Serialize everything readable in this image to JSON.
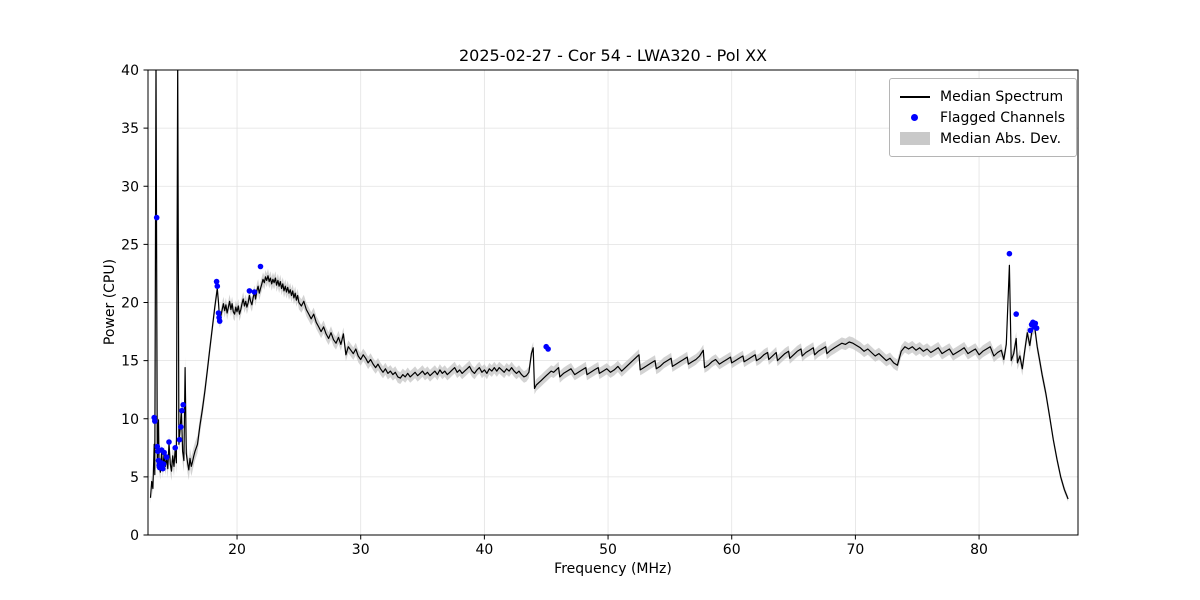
{
  "chart_data": {
    "type": "line",
    "title": "2025-02-27 - Cor 54 - LWA320 - Pol XX",
    "xlabel": "Frequency (MHz)",
    "ylabel": "Power (CPU)",
    "xlim": [
      12.8,
      88.0
    ],
    "ylim": [
      0,
      40
    ],
    "xticks": [
      20,
      30,
      40,
      50,
      60,
      70,
      80
    ],
    "yticks": [
      0,
      5,
      10,
      15,
      20,
      25,
      30,
      35,
      40
    ],
    "grid": true,
    "colors": {
      "line": "#000000",
      "flagged": "#0000ff",
      "band": "#c8c8c8",
      "grid": "#e2e2e2",
      "spine": "#000000"
    },
    "legend": {
      "position": "upper right",
      "entries": [
        {
          "label": "Median Spectrum",
          "type": "line"
        },
        {
          "label": "Flagged Channels",
          "type": "scatter"
        },
        {
          "label": "Median Abs. Dev.",
          "type": "band"
        }
      ]
    },
    "median_spectrum": [
      [
        13.0,
        3.2
      ],
      [
        13.1,
        4.6
      ],
      [
        13.2,
        4.0
      ],
      [
        13.3,
        7.8
      ],
      [
        13.35,
        5.2
      ],
      [
        13.45,
        41
      ],
      [
        13.55,
        5.8
      ],
      [
        13.65,
        9.9
      ],
      [
        13.7,
        6.0
      ],
      [
        13.8,
        5.4
      ],
      [
        13.9,
        7.2
      ],
      [
        14.0,
        5.6
      ],
      [
        14.1,
        7.0
      ],
      [
        14.2,
        5.9
      ],
      [
        14.3,
        6.6
      ],
      [
        14.4,
        5.7
      ],
      [
        14.5,
        7.9
      ],
      [
        14.6,
        6.1
      ],
      [
        14.7,
        5.5
      ],
      [
        14.8,
        6.8
      ],
      [
        14.9,
        5.9
      ],
      [
        15.0,
        7.4
      ],
      [
        15.1,
        6.2
      ],
      [
        15.2,
        41
      ],
      [
        15.3,
        7.8
      ],
      [
        15.4,
        9.2
      ],
      [
        15.5,
        10.8
      ],
      [
        15.6,
        7.2
      ],
      [
        15.7,
        6.4
      ],
      [
        15.8,
        14.4
      ],
      [
        15.9,
        7.0
      ],
      [
        16.0,
        6.2
      ],
      [
        16.1,
        5.6
      ],
      [
        16.2,
        6.6
      ],
      [
        16.3,
        5.9
      ],
      [
        16.4,
        6.3
      ],
      [
        16.5,
        6.8
      ],
      [
        16.6,
        7.2
      ],
      [
        16.8,
        7.8
      ],
      [
        17.0,
        9.4
      ],
      [
        17.2,
        10.8
      ],
      [
        17.4,
        12.4
      ],
      [
        17.6,
        14.2
      ],
      [
        17.8,
        16.0
      ],
      [
        18.0,
        17.8
      ],
      [
        18.2,
        19.6
      ],
      [
        18.4,
        21.2
      ],
      [
        18.5,
        20.0
      ],
      [
        18.6,
        18.4
      ],
      [
        18.7,
        18.9
      ],
      [
        18.8,
        19.4
      ],
      [
        18.9,
        19.9
      ],
      [
        19.0,
        19.3
      ],
      [
        19.1,
        19.8
      ],
      [
        19.2,
        19.1
      ],
      [
        19.3,
        19.6
      ],
      [
        19.4,
        20.1
      ],
      [
        19.5,
        19.4
      ],
      [
        19.6,
        19.9
      ],
      [
        19.7,
        19.2
      ],
      [
        19.8,
        19.0
      ],
      [
        19.9,
        19.6
      ],
      [
        20.0,
        19.2
      ],
      [
        20.1,
        19.7
      ],
      [
        20.2,
        19.0
      ],
      [
        20.3,
        19.4
      ],
      [
        20.4,
        19.9
      ],
      [
        20.5,
        20.3
      ],
      [
        20.6,
        19.7
      ],
      [
        20.7,
        20.1
      ],
      [
        20.8,
        19.6
      ],
      [
        20.9,
        20.0
      ],
      [
        21.0,
        20.6
      ],
      [
        21.1,
        20.1
      ],
      [
        21.2,
        19.8
      ],
      [
        21.3,
        20.4
      ],
      [
        21.4,
        20.9
      ],
      [
        21.5,
        20.3
      ],
      [
        21.6,
        21.0
      ],
      [
        21.7,
        21.4
      ],
      [
        21.8,
        20.8
      ],
      [
        21.9,
        21.2
      ],
      [
        22.0,
        21.6
      ],
      [
        22.1,
        22.0
      ],
      [
        22.2,
        21.7
      ],
      [
        22.3,
        22.2
      ],
      [
        22.4,
        21.9
      ],
      [
        22.5,
        22.3
      ],
      [
        22.6,
        21.8
      ],
      [
        22.7,
        22.1
      ],
      [
        22.8,
        21.6
      ],
      [
        22.9,
        22.0
      ],
      [
        23.0,
        21.7
      ],
      [
        23.1,
        22.1
      ],
      [
        23.2,
        21.5
      ],
      [
        23.3,
        21.9
      ],
      [
        23.4,
        21.4
      ],
      [
        23.5,
        21.8
      ],
      [
        23.6,
        21.2
      ],
      [
        23.7,
        21.6
      ],
      [
        23.8,
        21.0
      ],
      [
        23.9,
        21.4
      ],
      [
        24.0,
        20.9
      ],
      [
        24.1,
        21.3
      ],
      [
        24.2,
        20.8
      ],
      [
        24.3,
        21.1
      ],
      [
        24.4,
        20.6
      ],
      [
        24.5,
        21.0
      ],
      [
        24.6,
        20.4
      ],
      [
        24.7,
        20.8
      ],
      [
        24.8,
        20.2
      ],
      [
        24.9,
        20.6
      ],
      [
        25.0,
        20.0
      ],
      [
        25.2,
        19.7
      ],
      [
        25.4,
        20.1
      ],
      [
        25.6,
        19.4
      ],
      [
        25.8,
        19.0
      ],
      [
        26.0,
        18.6
      ],
      [
        26.2,
        19.0
      ],
      [
        26.4,
        18.3
      ],
      [
        26.6,
        17.9
      ],
      [
        26.8,
        17.5
      ],
      [
        27.0,
        17.9
      ],
      [
        27.2,
        17.3
      ],
      [
        27.4,
        16.9
      ],
      [
        27.6,
        17.4
      ],
      [
        27.8,
        16.8
      ],
      [
        28.0,
        16.5
      ],
      [
        28.2,
        17.0
      ],
      [
        28.4,
        16.4
      ],
      [
        28.6,
        17.3
      ],
      [
        28.8,
        15.5
      ],
      [
        29.0,
        16.2
      ],
      [
        29.2,
        15.9
      ],
      [
        29.4,
        15.6
      ],
      [
        29.6,
        16.0
      ],
      [
        29.8,
        15.4
      ],
      [
        30.0,
        15.1
      ],
      [
        30.2,
        15.5
      ],
      [
        30.4,
        15.2
      ],
      [
        30.6,
        14.8
      ],
      [
        30.8,
        15.1
      ],
      [
        31.0,
        14.7
      ],
      [
        31.2,
        14.4
      ],
      [
        31.4,
        14.7
      ],
      [
        31.6,
        14.3
      ],
      [
        31.8,
        14.0
      ],
      [
        32.0,
        14.3
      ],
      [
        32.2,
        13.9
      ],
      [
        32.4,
        14.1
      ],
      [
        32.6,
        13.8
      ],
      [
        32.8,
        14.0
      ],
      [
        33.0,
        13.6
      ],
      [
        33.2,
        13.5
      ],
      [
        33.4,
        13.8
      ],
      [
        33.6,
        13.6
      ],
      [
        33.8,
        13.9
      ],
      [
        34.0,
        13.6
      ],
      [
        34.2,
        13.8
      ],
      [
        34.4,
        14.0
      ],
      [
        34.6,
        13.7
      ],
      [
        34.8,
        13.9
      ],
      [
        35.0,
        14.1
      ],
      [
        35.2,
        13.8
      ],
      [
        35.4,
        14.0
      ],
      [
        35.6,
        13.7
      ],
      [
        35.8,
        13.9
      ],
      [
        36.0,
        14.1
      ],
      [
        36.2,
        13.8
      ],
      [
        36.4,
        14.2
      ],
      [
        36.6,
        13.9
      ],
      [
        36.8,
        14.1
      ],
      [
        37.0,
        13.8
      ],
      [
        37.2,
        14.0
      ],
      [
        37.4,
        14.2
      ],
      [
        37.6,
        14.4
      ],
      [
        37.8,
        14.0
      ],
      [
        38.0,
        14.2
      ],
      [
        38.2,
        13.9
      ],
      [
        38.4,
        14.1
      ],
      [
        38.6,
        14.3
      ],
      [
        38.8,
        14.5
      ],
      [
        39.0,
        14.1
      ],
      [
        39.2,
        13.9
      ],
      [
        39.4,
        14.2
      ],
      [
        39.6,
        14.4
      ],
      [
        39.8,
        14.0
      ],
      [
        40.0,
        14.2
      ],
      [
        40.2,
        13.9
      ],
      [
        40.4,
        14.3
      ],
      [
        40.6,
        14.1
      ],
      [
        40.8,
        14.4
      ],
      [
        41.0,
        14.1
      ],
      [
        41.2,
        14.4
      ],
      [
        41.4,
        14.2
      ],
      [
        41.6,
        14.0
      ],
      [
        41.8,
        14.3
      ],
      [
        42.0,
        14.1
      ],
      [
        42.2,
        14.4
      ],
      [
        42.4,
        14.1
      ],
      [
        42.6,
        13.9
      ],
      [
        42.8,
        14.1
      ],
      [
        43.0,
        13.8
      ],
      [
        43.2,
        13.6
      ],
      [
        43.4,
        13.7
      ],
      [
        43.6,
        14.0
      ],
      [
        43.8,
        15.6
      ],
      [
        43.95,
        16.1
      ],
      [
        44.05,
        12.6
      ],
      [
        44.2,
        12.9
      ],
      [
        44.4,
        13.1
      ],
      [
        44.6,
        13.3
      ],
      [
        44.8,
        13.5
      ],
      [
        45.0,
        13.7
      ],
      [
        45.2,
        13.9
      ],
      [
        45.4,
        14.1
      ],
      [
        45.6,
        14.0
      ],
      [
        45.8,
        14.2
      ],
      [
        46.0,
        14.4
      ],
      [
        46.1,
        13.6
      ],
      [
        46.4,
        13.9
      ],
      [
        46.7,
        14.1
      ],
      [
        47.0,
        14.3
      ],
      [
        47.3,
        13.8
      ],
      [
        47.6,
        14.0
      ],
      [
        47.9,
        14.2
      ],
      [
        48.2,
        14.4
      ],
      [
        48.3,
        13.8
      ],
      [
        48.6,
        14.0
      ],
      [
        48.9,
        14.2
      ],
      [
        49.2,
        14.4
      ],
      [
        49.3,
        13.9
      ],
      [
        49.6,
        14.1
      ],
      [
        49.9,
        14.3
      ],
      [
        50.2,
        14.0
      ],
      [
        50.5,
        14.2
      ],
      [
        50.8,
        14.5
      ],
      [
        51.1,
        14.1
      ],
      [
        51.4,
        14.4
      ],
      [
        51.7,
        14.7
      ],
      [
        52.0,
        15.0
      ],
      [
        52.3,
        15.3
      ],
      [
        52.5,
        15.5
      ],
      [
        52.6,
        14.2
      ],
      [
        52.9,
        14.4
      ],
      [
        53.2,
        14.6
      ],
      [
        53.5,
        14.8
      ],
      [
        53.8,
        15.0
      ],
      [
        53.9,
        14.3
      ],
      [
        54.2,
        14.5
      ],
      [
        54.5,
        14.8
      ],
      [
        54.8,
        15.0
      ],
      [
        55.1,
        15.2
      ],
      [
        55.2,
        14.5
      ],
      [
        55.5,
        14.7
      ],
      [
        55.8,
        14.9
      ],
      [
        56.1,
        15.1
      ],
      [
        56.4,
        15.3
      ],
      [
        56.5,
        14.7
      ],
      [
        56.8,
        14.9
      ],
      [
        57.1,
        15.1
      ],
      [
        57.4,
        15.4
      ],
      [
        57.7,
        15.9
      ],
      [
        57.8,
        14.4
      ],
      [
        58.1,
        14.6
      ],
      [
        58.4,
        14.9
      ],
      [
        58.7,
        15.1
      ],
      [
        59.0,
        14.7
      ],
      [
        59.3,
        14.9
      ],
      [
        59.6,
        15.1
      ],
      [
        59.9,
        15.3
      ],
      [
        60.0,
        14.8
      ],
      [
        60.3,
        15.0
      ],
      [
        60.6,
        15.2
      ],
      [
        60.9,
        15.4
      ],
      [
        61.0,
        14.9
      ],
      [
        61.3,
        15.1
      ],
      [
        61.6,
        15.3
      ],
      [
        61.9,
        15.5
      ],
      [
        62.0,
        15.0
      ],
      [
        62.3,
        15.2
      ],
      [
        62.6,
        15.5
      ],
      [
        62.9,
        15.7
      ],
      [
        63.0,
        15.1
      ],
      [
        63.3,
        15.4
      ],
      [
        63.6,
        15.7
      ],
      [
        63.7,
        15.0
      ],
      [
        64.0,
        15.3
      ],
      [
        64.3,
        15.6
      ],
      [
        64.6,
        15.8
      ],
      [
        64.7,
        15.2
      ],
      [
        65.0,
        15.5
      ],
      [
        65.3,
        15.8
      ],
      [
        65.6,
        16.0
      ],
      [
        65.7,
        15.4
      ],
      [
        66.0,
        15.7
      ],
      [
        66.3,
        15.9
      ],
      [
        66.6,
        16.1
      ],
      [
        66.7,
        15.5
      ],
      [
        67.0,
        15.8
      ],
      [
        67.3,
        16.0
      ],
      [
        67.6,
        16.2
      ],
      [
        67.7,
        15.6
      ],
      [
        68.0,
        15.9
      ],
      [
        68.3,
        16.1
      ],
      [
        68.6,
        16.3
      ],
      [
        68.9,
        16.5
      ],
      [
        69.2,
        16.4
      ],
      [
        69.5,
        16.6
      ],
      [
        69.8,
        16.5
      ],
      [
        70.1,
        16.3
      ],
      [
        70.4,
        16.1
      ],
      [
        70.7,
        15.8
      ],
      [
        71.0,
        16.0
      ],
      [
        71.3,
        15.7
      ],
      [
        71.6,
        15.4
      ],
      [
        71.9,
        15.6
      ],
      [
        72.2,
        15.3
      ],
      [
        72.5,
        15.0
      ],
      [
        72.8,
        15.2
      ],
      [
        73.1,
        14.8
      ],
      [
        73.4,
        14.6
      ],
      [
        73.7,
        15.8
      ],
      [
        74.0,
        16.2
      ],
      [
        74.3,
        16.0
      ],
      [
        74.6,
        16.2
      ],
      [
        74.9,
        15.9
      ],
      [
        75.2,
        16.1
      ],
      [
        75.5,
        15.8
      ],
      [
        75.8,
        16.0
      ],
      [
        76.1,
        15.7
      ],
      [
        76.4,
        15.9
      ],
      [
        76.7,
        16.1
      ],
      [
        77.0,
        15.6
      ],
      [
        77.3,
        15.8
      ],
      [
        77.6,
        16.0
      ],
      [
        77.9,
        15.5
      ],
      [
        78.2,
        15.7
      ],
      [
        78.5,
        15.9
      ],
      [
        78.8,
        16.1
      ],
      [
        79.1,
        15.6
      ],
      [
        79.4,
        15.8
      ],
      [
        79.7,
        16.0
      ],
      [
        80.0,
        15.5
      ],
      [
        80.3,
        15.8
      ],
      [
        80.6,
        16.0
      ],
      [
        80.9,
        16.2
      ],
      [
        81.2,
        15.4
      ],
      [
        81.5,
        15.7
      ],
      [
        81.8,
        15.9
      ],
      [
        82.0,
        15.1
      ],
      [
        82.2,
        16.4
      ],
      [
        82.45,
        23.2
      ],
      [
        82.6,
        15.0
      ],
      [
        82.8,
        15.6
      ],
      [
        83.0,
        16.9
      ],
      [
        83.1,
        14.8
      ],
      [
        83.3,
        15.4
      ],
      [
        83.5,
        14.3
      ],
      [
        83.7,
        15.9
      ],
      [
        83.9,
        17.4
      ],
      [
        84.1,
        16.3
      ],
      [
        84.3,
        17.7
      ],
      [
        84.5,
        17.9
      ],
      [
        84.7,
        16.2
      ],
      [
        84.9,
        15.0
      ],
      [
        85.1,
        13.8
      ],
      [
        85.4,
        12.2
      ],
      [
        85.7,
        10.2
      ],
      [
        86.0,
        8.2
      ],
      [
        86.3,
        6.5
      ],
      [
        86.6,
        5.0
      ],
      [
        86.9,
        3.9
      ],
      [
        87.2,
        3.1
      ]
    ],
    "flagged_channels": [
      [
        13.5,
        27.3
      ],
      [
        13.3,
        10.1
      ],
      [
        13.35,
        9.8
      ],
      [
        13.55,
        7.6
      ],
      [
        13.6,
        7.2
      ],
      [
        13.65,
        6.4
      ],
      [
        13.7,
        6.0
      ],
      [
        13.75,
        5.8
      ],
      [
        13.85,
        6.2
      ],
      [
        13.9,
        7.3
      ],
      [
        14.0,
        5.7
      ],
      [
        14.05,
        6.1
      ],
      [
        14.1,
        7.1
      ],
      [
        14.3,
        6.7
      ],
      [
        14.5,
        8.0
      ],
      [
        15.0,
        7.5
      ],
      [
        15.35,
        8.2
      ],
      [
        15.45,
        9.3
      ],
      [
        15.55,
        10.7
      ],
      [
        15.65,
        11.2
      ],
      [
        18.35,
        21.8
      ],
      [
        18.4,
        21.4
      ],
      [
        18.5,
        19.1
      ],
      [
        18.55,
        18.7
      ],
      [
        18.6,
        18.4
      ],
      [
        21.0,
        21.0
      ],
      [
        21.4,
        20.9
      ],
      [
        21.9,
        23.1
      ],
      [
        45.0,
        16.2
      ],
      [
        45.15,
        16.0
      ],
      [
        82.45,
        24.2
      ],
      [
        83.0,
        19.0
      ],
      [
        84.15,
        17.6
      ],
      [
        84.25,
        18.1
      ],
      [
        84.35,
        18.3
      ],
      [
        84.45,
        17.9
      ],
      [
        84.55,
        18.2
      ],
      [
        84.65,
        17.8
      ]
    ],
    "mad_halfwidth": [
      [
        13.0,
        0.5
      ],
      [
        14.0,
        0.7
      ],
      [
        15.5,
        1.0
      ],
      [
        16.5,
        0.8
      ],
      [
        18.0,
        0.6
      ],
      [
        22.0,
        0.6
      ],
      [
        28.0,
        0.55
      ],
      [
        35.0,
        0.5
      ],
      [
        45.0,
        0.5
      ],
      [
        60.0,
        0.45
      ],
      [
        70.0,
        0.5
      ],
      [
        80.0,
        0.5
      ],
      [
        84.0,
        0.6
      ],
      [
        86.0,
        0.4
      ],
      [
        87.2,
        0.25
      ]
    ]
  }
}
